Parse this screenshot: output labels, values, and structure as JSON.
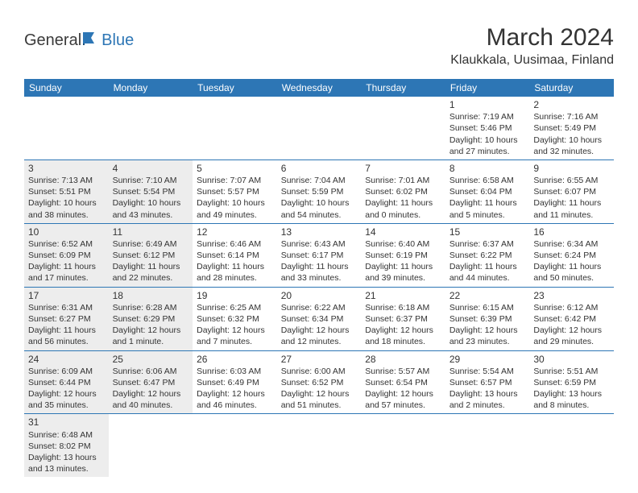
{
  "logo": {
    "text1": "General",
    "text2": "Blue"
  },
  "title": "March 2024",
  "location": "Klaukkala, Uusimaa, Finland",
  "colors": {
    "header_bg": "#2d76b5",
    "header_fg": "#ffffff",
    "border": "#2d76b5",
    "shade": "#ededed",
    "text": "#333333"
  },
  "dayHeaders": [
    "Sunday",
    "Monday",
    "Tuesday",
    "Wednesday",
    "Thursday",
    "Friday",
    "Saturday"
  ],
  "weeks": [
    [
      null,
      null,
      null,
      null,
      null,
      {
        "n": "1",
        "sr": "Sunrise: 7:19 AM",
        "ss": "Sunset: 5:46 PM",
        "dl1": "Daylight: 10 hours",
        "dl2": "and 27 minutes.",
        "sh": false
      },
      {
        "n": "2",
        "sr": "Sunrise: 7:16 AM",
        "ss": "Sunset: 5:49 PM",
        "dl1": "Daylight: 10 hours",
        "dl2": "and 32 minutes.",
        "sh": false
      }
    ],
    [
      {
        "n": "3",
        "sr": "Sunrise: 7:13 AM",
        "ss": "Sunset: 5:51 PM",
        "dl1": "Daylight: 10 hours",
        "dl2": "and 38 minutes.",
        "sh": true
      },
      {
        "n": "4",
        "sr": "Sunrise: 7:10 AM",
        "ss": "Sunset: 5:54 PM",
        "dl1": "Daylight: 10 hours",
        "dl2": "and 43 minutes.",
        "sh": true
      },
      {
        "n": "5",
        "sr": "Sunrise: 7:07 AM",
        "ss": "Sunset: 5:57 PM",
        "dl1": "Daylight: 10 hours",
        "dl2": "and 49 minutes.",
        "sh": false
      },
      {
        "n": "6",
        "sr": "Sunrise: 7:04 AM",
        "ss": "Sunset: 5:59 PM",
        "dl1": "Daylight: 10 hours",
        "dl2": "and 54 minutes.",
        "sh": false
      },
      {
        "n": "7",
        "sr": "Sunrise: 7:01 AM",
        "ss": "Sunset: 6:02 PM",
        "dl1": "Daylight: 11 hours",
        "dl2": "and 0 minutes.",
        "sh": false
      },
      {
        "n": "8",
        "sr": "Sunrise: 6:58 AM",
        "ss": "Sunset: 6:04 PM",
        "dl1": "Daylight: 11 hours",
        "dl2": "and 5 minutes.",
        "sh": false
      },
      {
        "n": "9",
        "sr": "Sunrise: 6:55 AM",
        "ss": "Sunset: 6:07 PM",
        "dl1": "Daylight: 11 hours",
        "dl2": "and 11 minutes.",
        "sh": false
      }
    ],
    [
      {
        "n": "10",
        "sr": "Sunrise: 6:52 AM",
        "ss": "Sunset: 6:09 PM",
        "dl1": "Daylight: 11 hours",
        "dl2": "and 17 minutes.",
        "sh": true
      },
      {
        "n": "11",
        "sr": "Sunrise: 6:49 AM",
        "ss": "Sunset: 6:12 PM",
        "dl1": "Daylight: 11 hours",
        "dl2": "and 22 minutes.",
        "sh": true
      },
      {
        "n": "12",
        "sr": "Sunrise: 6:46 AM",
        "ss": "Sunset: 6:14 PM",
        "dl1": "Daylight: 11 hours",
        "dl2": "and 28 minutes.",
        "sh": false
      },
      {
        "n": "13",
        "sr": "Sunrise: 6:43 AM",
        "ss": "Sunset: 6:17 PM",
        "dl1": "Daylight: 11 hours",
        "dl2": "and 33 minutes.",
        "sh": false
      },
      {
        "n": "14",
        "sr": "Sunrise: 6:40 AM",
        "ss": "Sunset: 6:19 PM",
        "dl1": "Daylight: 11 hours",
        "dl2": "and 39 minutes.",
        "sh": false
      },
      {
        "n": "15",
        "sr": "Sunrise: 6:37 AM",
        "ss": "Sunset: 6:22 PM",
        "dl1": "Daylight: 11 hours",
        "dl2": "and 44 minutes.",
        "sh": false
      },
      {
        "n": "16",
        "sr": "Sunrise: 6:34 AM",
        "ss": "Sunset: 6:24 PM",
        "dl1": "Daylight: 11 hours",
        "dl2": "and 50 minutes.",
        "sh": false
      }
    ],
    [
      {
        "n": "17",
        "sr": "Sunrise: 6:31 AM",
        "ss": "Sunset: 6:27 PM",
        "dl1": "Daylight: 11 hours",
        "dl2": "and 56 minutes.",
        "sh": true
      },
      {
        "n": "18",
        "sr": "Sunrise: 6:28 AM",
        "ss": "Sunset: 6:29 PM",
        "dl1": "Daylight: 12 hours",
        "dl2": "and 1 minute.",
        "sh": true
      },
      {
        "n": "19",
        "sr": "Sunrise: 6:25 AM",
        "ss": "Sunset: 6:32 PM",
        "dl1": "Daylight: 12 hours",
        "dl2": "and 7 minutes.",
        "sh": false
      },
      {
        "n": "20",
        "sr": "Sunrise: 6:22 AM",
        "ss": "Sunset: 6:34 PM",
        "dl1": "Daylight: 12 hours",
        "dl2": "and 12 minutes.",
        "sh": false
      },
      {
        "n": "21",
        "sr": "Sunrise: 6:18 AM",
        "ss": "Sunset: 6:37 PM",
        "dl1": "Daylight: 12 hours",
        "dl2": "and 18 minutes.",
        "sh": false
      },
      {
        "n": "22",
        "sr": "Sunrise: 6:15 AM",
        "ss": "Sunset: 6:39 PM",
        "dl1": "Daylight: 12 hours",
        "dl2": "and 23 minutes.",
        "sh": false
      },
      {
        "n": "23",
        "sr": "Sunrise: 6:12 AM",
        "ss": "Sunset: 6:42 PM",
        "dl1": "Daylight: 12 hours",
        "dl2": "and 29 minutes.",
        "sh": false
      }
    ],
    [
      {
        "n": "24",
        "sr": "Sunrise: 6:09 AM",
        "ss": "Sunset: 6:44 PM",
        "dl1": "Daylight: 12 hours",
        "dl2": "and 35 minutes.",
        "sh": true
      },
      {
        "n": "25",
        "sr": "Sunrise: 6:06 AM",
        "ss": "Sunset: 6:47 PM",
        "dl1": "Daylight: 12 hours",
        "dl2": "and 40 minutes.",
        "sh": true
      },
      {
        "n": "26",
        "sr": "Sunrise: 6:03 AM",
        "ss": "Sunset: 6:49 PM",
        "dl1": "Daylight: 12 hours",
        "dl2": "and 46 minutes.",
        "sh": false
      },
      {
        "n": "27",
        "sr": "Sunrise: 6:00 AM",
        "ss": "Sunset: 6:52 PM",
        "dl1": "Daylight: 12 hours",
        "dl2": "and 51 minutes.",
        "sh": false
      },
      {
        "n": "28",
        "sr": "Sunrise: 5:57 AM",
        "ss": "Sunset: 6:54 PM",
        "dl1": "Daylight: 12 hours",
        "dl2": "and 57 minutes.",
        "sh": false
      },
      {
        "n": "29",
        "sr": "Sunrise: 5:54 AM",
        "ss": "Sunset: 6:57 PM",
        "dl1": "Daylight: 13 hours",
        "dl2": "and 2 minutes.",
        "sh": false
      },
      {
        "n": "30",
        "sr": "Sunrise: 5:51 AM",
        "ss": "Sunset: 6:59 PM",
        "dl1": "Daylight: 13 hours",
        "dl2": "and 8 minutes.",
        "sh": false
      }
    ],
    [
      {
        "n": "31",
        "sr": "Sunrise: 6:48 AM",
        "ss": "Sunset: 8:02 PM",
        "dl1": "Daylight: 13 hours",
        "dl2": "and 13 minutes.",
        "sh": true
      },
      null,
      null,
      null,
      null,
      null,
      null
    ]
  ]
}
